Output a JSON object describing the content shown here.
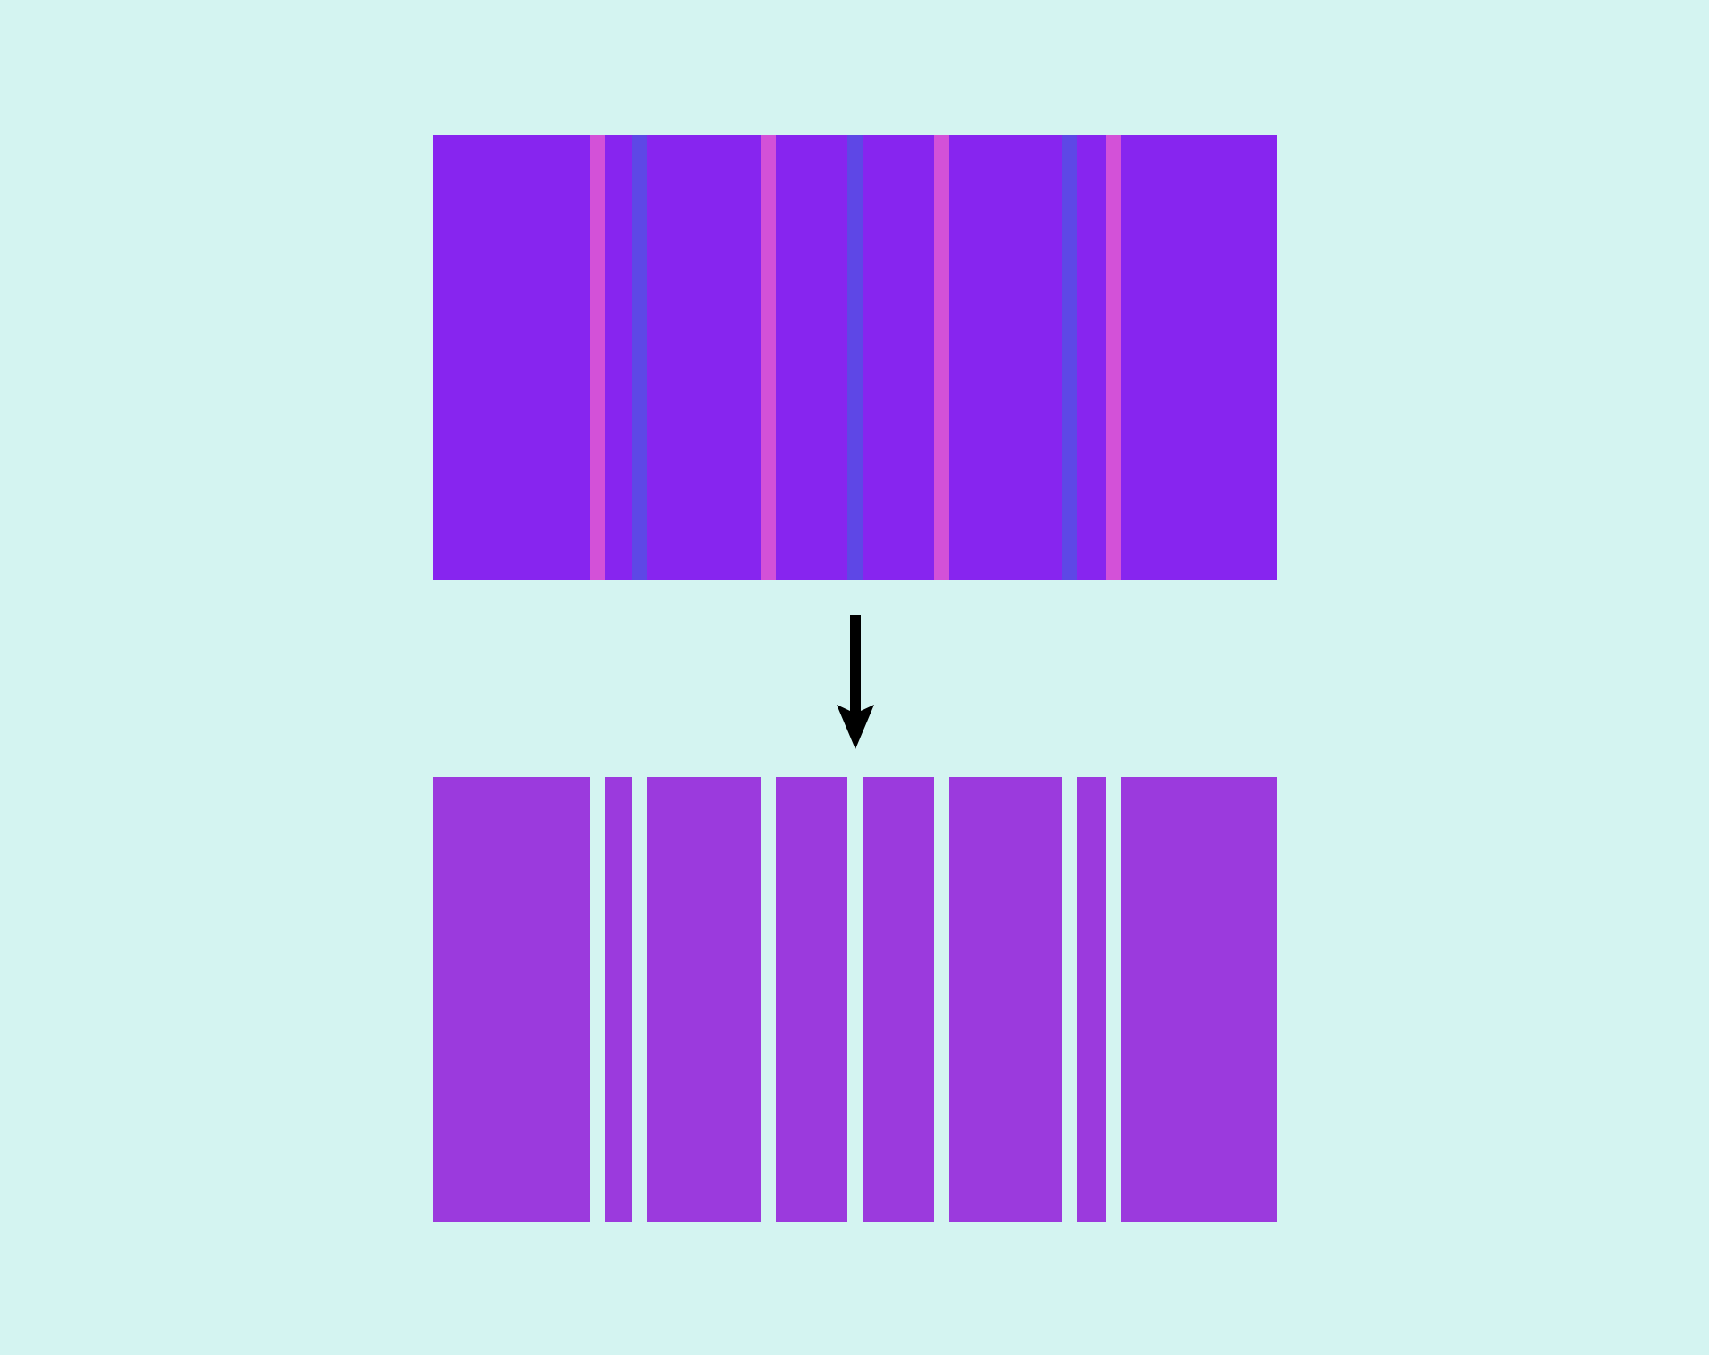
{
  "colors": {
    "background": "#d4f4f1",
    "sheet_top": "#8725ef",
    "sheet_bottom": "#9b3add",
    "cut_line_pink": "#d351d8",
    "cut_line_blue": "#5e47e6",
    "arrow": "#000000"
  },
  "top_sheet": {
    "cut_lines": [
      {
        "color": "pink"
      },
      {
        "color": "blue"
      },
      {
        "color": "pink"
      },
      {
        "color": "blue"
      },
      {
        "color": "pink"
      },
      {
        "color": "blue"
      },
      {
        "color": "pink"
      }
    ]
  },
  "bottom_strips": {
    "count": 8
  }
}
